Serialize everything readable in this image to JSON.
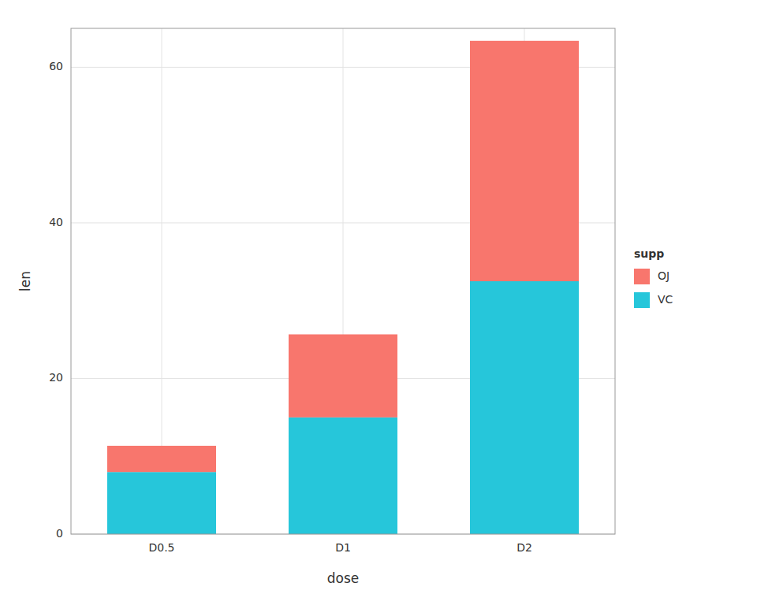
{
  "chart_data": {
    "type": "bar",
    "stacked": true,
    "xlabel": "dose",
    "ylabel": "len",
    "legend_title": "supp",
    "categories": [
      "D0.5",
      "D1",
      "D2"
    ],
    "series": [
      {
        "name": "VC",
        "color": "#26C6DA",
        "values": [
          7.98,
          15.0,
          32.5
        ]
      },
      {
        "name": "OJ",
        "color": "#F8766D",
        "values": [
          3.37,
          10.67,
          30.9
        ]
      }
    ],
    "ylim": [
      0,
      65
    ],
    "yticks": [
      0,
      20,
      40,
      60
    ],
    "grid": true,
    "legend": "right"
  }
}
